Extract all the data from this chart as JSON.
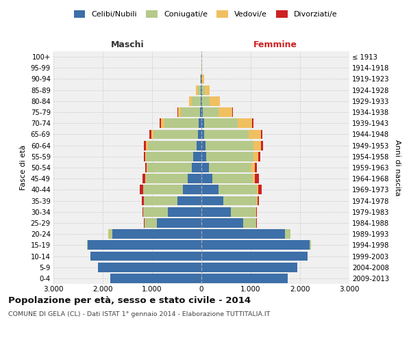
{
  "age_groups": [
    "0-4",
    "5-9",
    "10-14",
    "15-19",
    "20-24",
    "25-29",
    "30-34",
    "35-39",
    "40-44",
    "45-49",
    "50-54",
    "55-59",
    "60-64",
    "65-69",
    "70-74",
    "75-79",
    "80-84",
    "85-89",
    "90-94",
    "95-99",
    "100+"
  ],
  "birth_years": [
    "2009-2013",
    "2004-2008",
    "1999-2003",
    "1994-1998",
    "1989-1993",
    "1984-1988",
    "1979-1983",
    "1974-1978",
    "1969-1973",
    "1964-1968",
    "1959-1963",
    "1954-1958",
    "1949-1953",
    "1944-1948",
    "1939-1943",
    "1934-1938",
    "1929-1933",
    "1924-1928",
    "1919-1923",
    "1914-1918",
    "≤ 1913"
  ],
  "maschi_celibe": [
    1850,
    2100,
    2250,
    2300,
    1800,
    900,
    680,
    480,
    380,
    280,
    200,
    160,
    100,
    70,
    50,
    30,
    20,
    15,
    8,
    3,
    2
  ],
  "maschi_coniugato": [
    0,
    0,
    0,
    20,
    80,
    250,
    500,
    680,
    800,
    850,
    900,
    960,
    980,
    900,
    700,
    380,
    180,
    60,
    10,
    0,
    0
  ],
  "maschi_vedovo": [
    0,
    0,
    0,
    0,
    5,
    5,
    5,
    5,
    5,
    10,
    15,
    20,
    40,
    50,
    70,
    60,
    50,
    30,
    10,
    1,
    0
  ],
  "maschi_divorziato": [
    0,
    0,
    0,
    0,
    5,
    5,
    15,
    40,
    60,
    60,
    20,
    30,
    50,
    40,
    30,
    10,
    5,
    5,
    0,
    0,
    0
  ],
  "femmine_celibe": [
    1750,
    1950,
    2150,
    2200,
    1700,
    850,
    600,
    450,
    350,
    220,
    150,
    100,
    80,
    60,
    50,
    30,
    20,
    15,
    10,
    4,
    2
  ],
  "femmine_coniugata": [
    0,
    0,
    0,
    20,
    100,
    260,
    500,
    680,
    780,
    820,
    850,
    950,
    980,
    900,
    680,
    320,
    150,
    50,
    10,
    0,
    0
  ],
  "femmine_vedova": [
    0,
    0,
    0,
    0,
    5,
    5,
    10,
    10,
    20,
    50,
    80,
    100,
    150,
    250,
    300,
    280,
    200,
    100,
    40,
    3,
    0
  ],
  "femmine_divorziata": [
    0,
    0,
    0,
    0,
    5,
    10,
    20,
    30,
    70,
    80,
    50,
    50,
    40,
    25,
    20,
    10,
    5,
    5,
    0,
    0,
    0
  ],
  "colors": {
    "celibe": "#3d6fa8",
    "coniugato": "#b5c98a",
    "vedovo": "#f0c060",
    "divorziato": "#cc2222"
  },
  "xlim": 3000,
  "tick_labels": [
    "3.000",
    "2.000",
    "1.000",
    "0",
    "1.000",
    "2.000",
    "3.000"
  ],
  "title": "Popolazione per età, sesso e stato civile - 2014",
  "subtitle": "COMUNE DI GELA (CL) - Dati ISTAT 1° gennaio 2014 - Elaborazione TUTTITALIA.IT",
  "ylabel_left": "Fasce di età",
  "ylabel_right": "Anni di nascita",
  "header_left": "Maschi",
  "header_right": "Femmine",
  "legend_labels": [
    "Celibi/Nubili",
    "Coniugati/e",
    "Vedovi/e",
    "Divorziati/e"
  ],
  "bg_color": "#ffffff",
  "plot_bg": "#f0f0f0",
  "grid_color": "#cccccc"
}
